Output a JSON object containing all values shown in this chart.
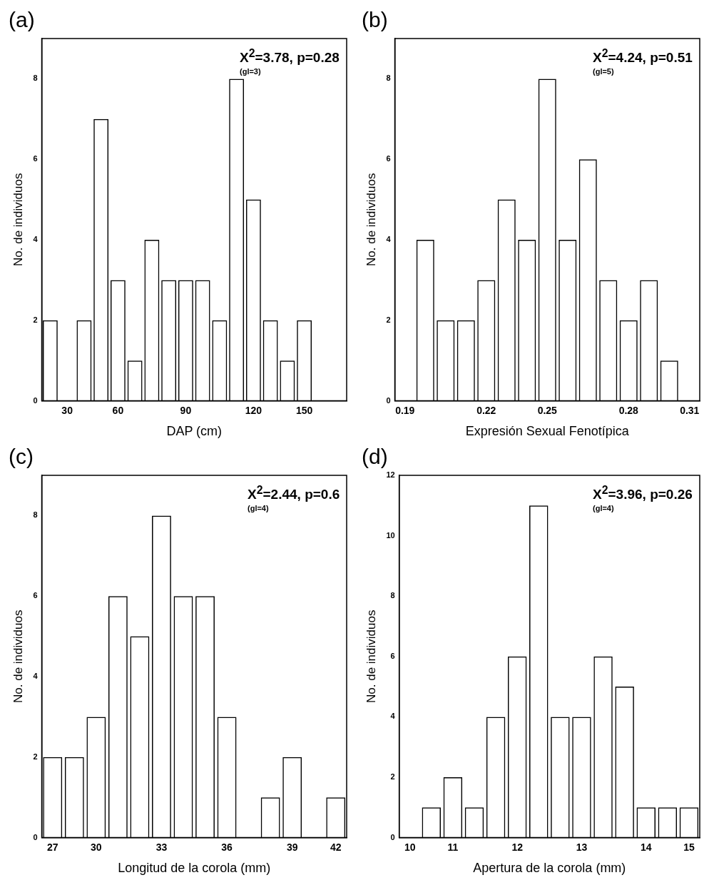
{
  "chart_data": [
    {
      "type": "bar",
      "title": "(a)",
      "xlabel": "DAP (cm)",
      "ylabel": "No. de individuos",
      "categories": [
        null,
        "30",
        null,
        null,
        "60",
        null,
        null,
        null,
        "90",
        null,
        null,
        null,
        "120",
        null,
        null,
        "150",
        null,
        null
      ],
      "values": [
        2,
        null,
        2,
        7,
        3,
        1,
        4,
        3,
        3,
        3,
        2,
        8,
        5,
        2,
        1,
        2,
        null,
        null
      ],
      "color": "#000000",
      "ylim": [
        0,
        9
      ],
      "yticks": [
        0,
        2,
        4,
        6,
        8
      ],
      "annotations": [
        "X$^{2}$=3.78, p=0.28",
        "(gl=3)"
      ]
    },
    {
      "type": "bar",
      "title": "(b)",
      "xlabel": "Expresión Sexual Fenotípica",
      "ylabel": "No. de individuos",
      "categories": [
        "0.19",
        null,
        null,
        null,
        "0.22",
        null,
        null,
        "0.25",
        null,
        null,
        null,
        "0.28",
        null,
        null,
        "0.31"
      ],
      "values": [
        null,
        4,
        2,
        2,
        3,
        5,
        4,
        8,
        4,
        6,
        3,
        2,
        3,
        1,
        null
      ],
      "color": "#000000",
      "ylim": [
        0,
        9
      ],
      "yticks": [
        0,
        2,
        4,
        6,
        8
      ],
      "annotations": [
        "X$^{2}$=4.24, p=0.51",
        "(gl=5)"
      ]
    },
    {
      "type": "bar",
      "title": "(c)",
      "xlabel": "Longitud de la corola (mm)",
      "ylabel": "No. de individuos",
      "categories": [
        "27",
        null,
        "30",
        null,
        null,
        "33",
        null,
        null,
        "36",
        null,
        null,
        "39",
        null,
        "42"
      ],
      "values": [
        2,
        2,
        3,
        6,
        5,
        8,
        6,
        6,
        3,
        null,
        1,
        2,
        null,
        1
      ],
      "color": "#000000",
      "ylim": [
        0,
        9
      ],
      "yticks": [
        0,
        2,
        4,
        6,
        8
      ],
      "annotations": [
        "X$^{2}$=2.44, p=0.6",
        "(gl=4)"
      ]
    },
    {
      "type": "bar",
      "title": "(d)",
      "xlabel": "Apertura de la corola (mm)",
      "ylabel": "No. de individuos",
      "categories": [
        "10",
        null,
        "11",
        null,
        null,
        "12",
        null,
        null,
        "13",
        null,
        null,
        "14",
        null,
        "15"
      ],
      "values": [
        null,
        1,
        2,
        1,
        4,
        6,
        11,
        4,
        4,
        6,
        5,
        1,
        1,
        1
      ],
      "color": "#000000",
      "ylim": [
        0,
        12
      ],
      "yticks": [
        0,
        2,
        4,
        6,
        8,
        10,
        12
      ],
      "annotations": [
        "X$^{2}$=3.96, p=0.26",
        "(gl=4)"
      ]
    }
  ]
}
